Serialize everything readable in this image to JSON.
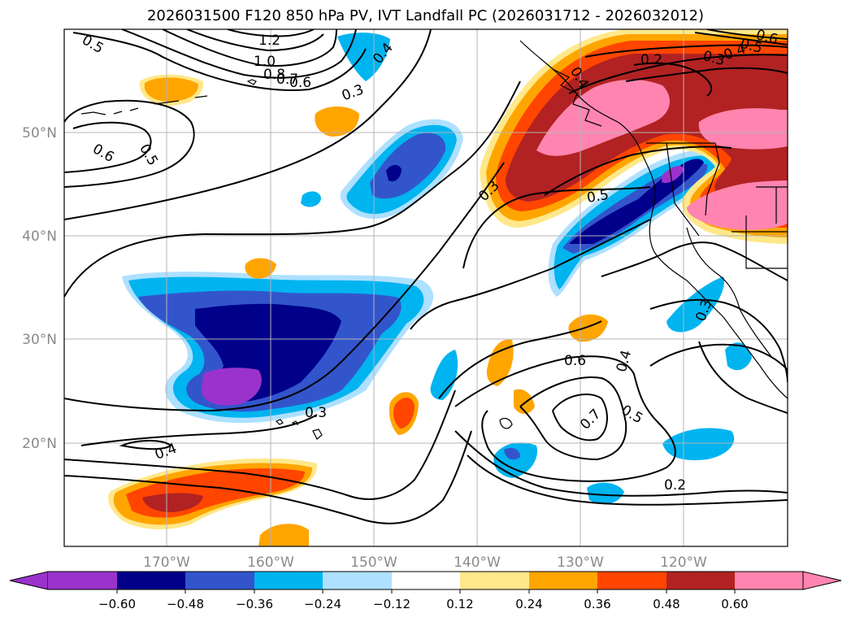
{
  "title": "2026031500 F120 850 hPa PV, IVT Landfall PC (2026031712 - 2026032012)",
  "lat_ticks": [
    "50°N",
    "40°N",
    "30°N",
    "20°N"
  ],
  "lon_ticks": [
    "170°W",
    "160°W",
    "150°W",
    "140°W",
    "130°W",
    "120°W"
  ],
  "contour_labels": [
    "0.5",
    "1.2",
    "1.0",
    "0.8",
    "0.7",
    "0.6",
    "0.4",
    "0.3",
    "0.6",
    "0.5",
    "0.3",
    "0.4",
    "0.5",
    "0.2",
    "0.3",
    "0.4",
    "0.5",
    "0.6",
    "0.3",
    "0.6",
    "0.4",
    "0.7",
    "0.5",
    "0.2",
    "0.4",
    "0.3"
  ],
  "colorbar": {
    "ticks": [
      "−0.60",
      "−0.48",
      "−0.36",
      "−0.24",
      "−0.12",
      "0.12",
      "0.24",
      "0.36",
      "0.48",
      "0.60"
    ],
    "colors": [
      "#9b32cc",
      "#00008b",
      "#3355cc",
      "#00b4f0",
      "#aee0ff",
      "#ffffff",
      "#ffe88a",
      "#ffa500",
      "#ff4500",
      "#b22222",
      "#ff85b0",
      "#ff85b0"
    ]
  }
}
